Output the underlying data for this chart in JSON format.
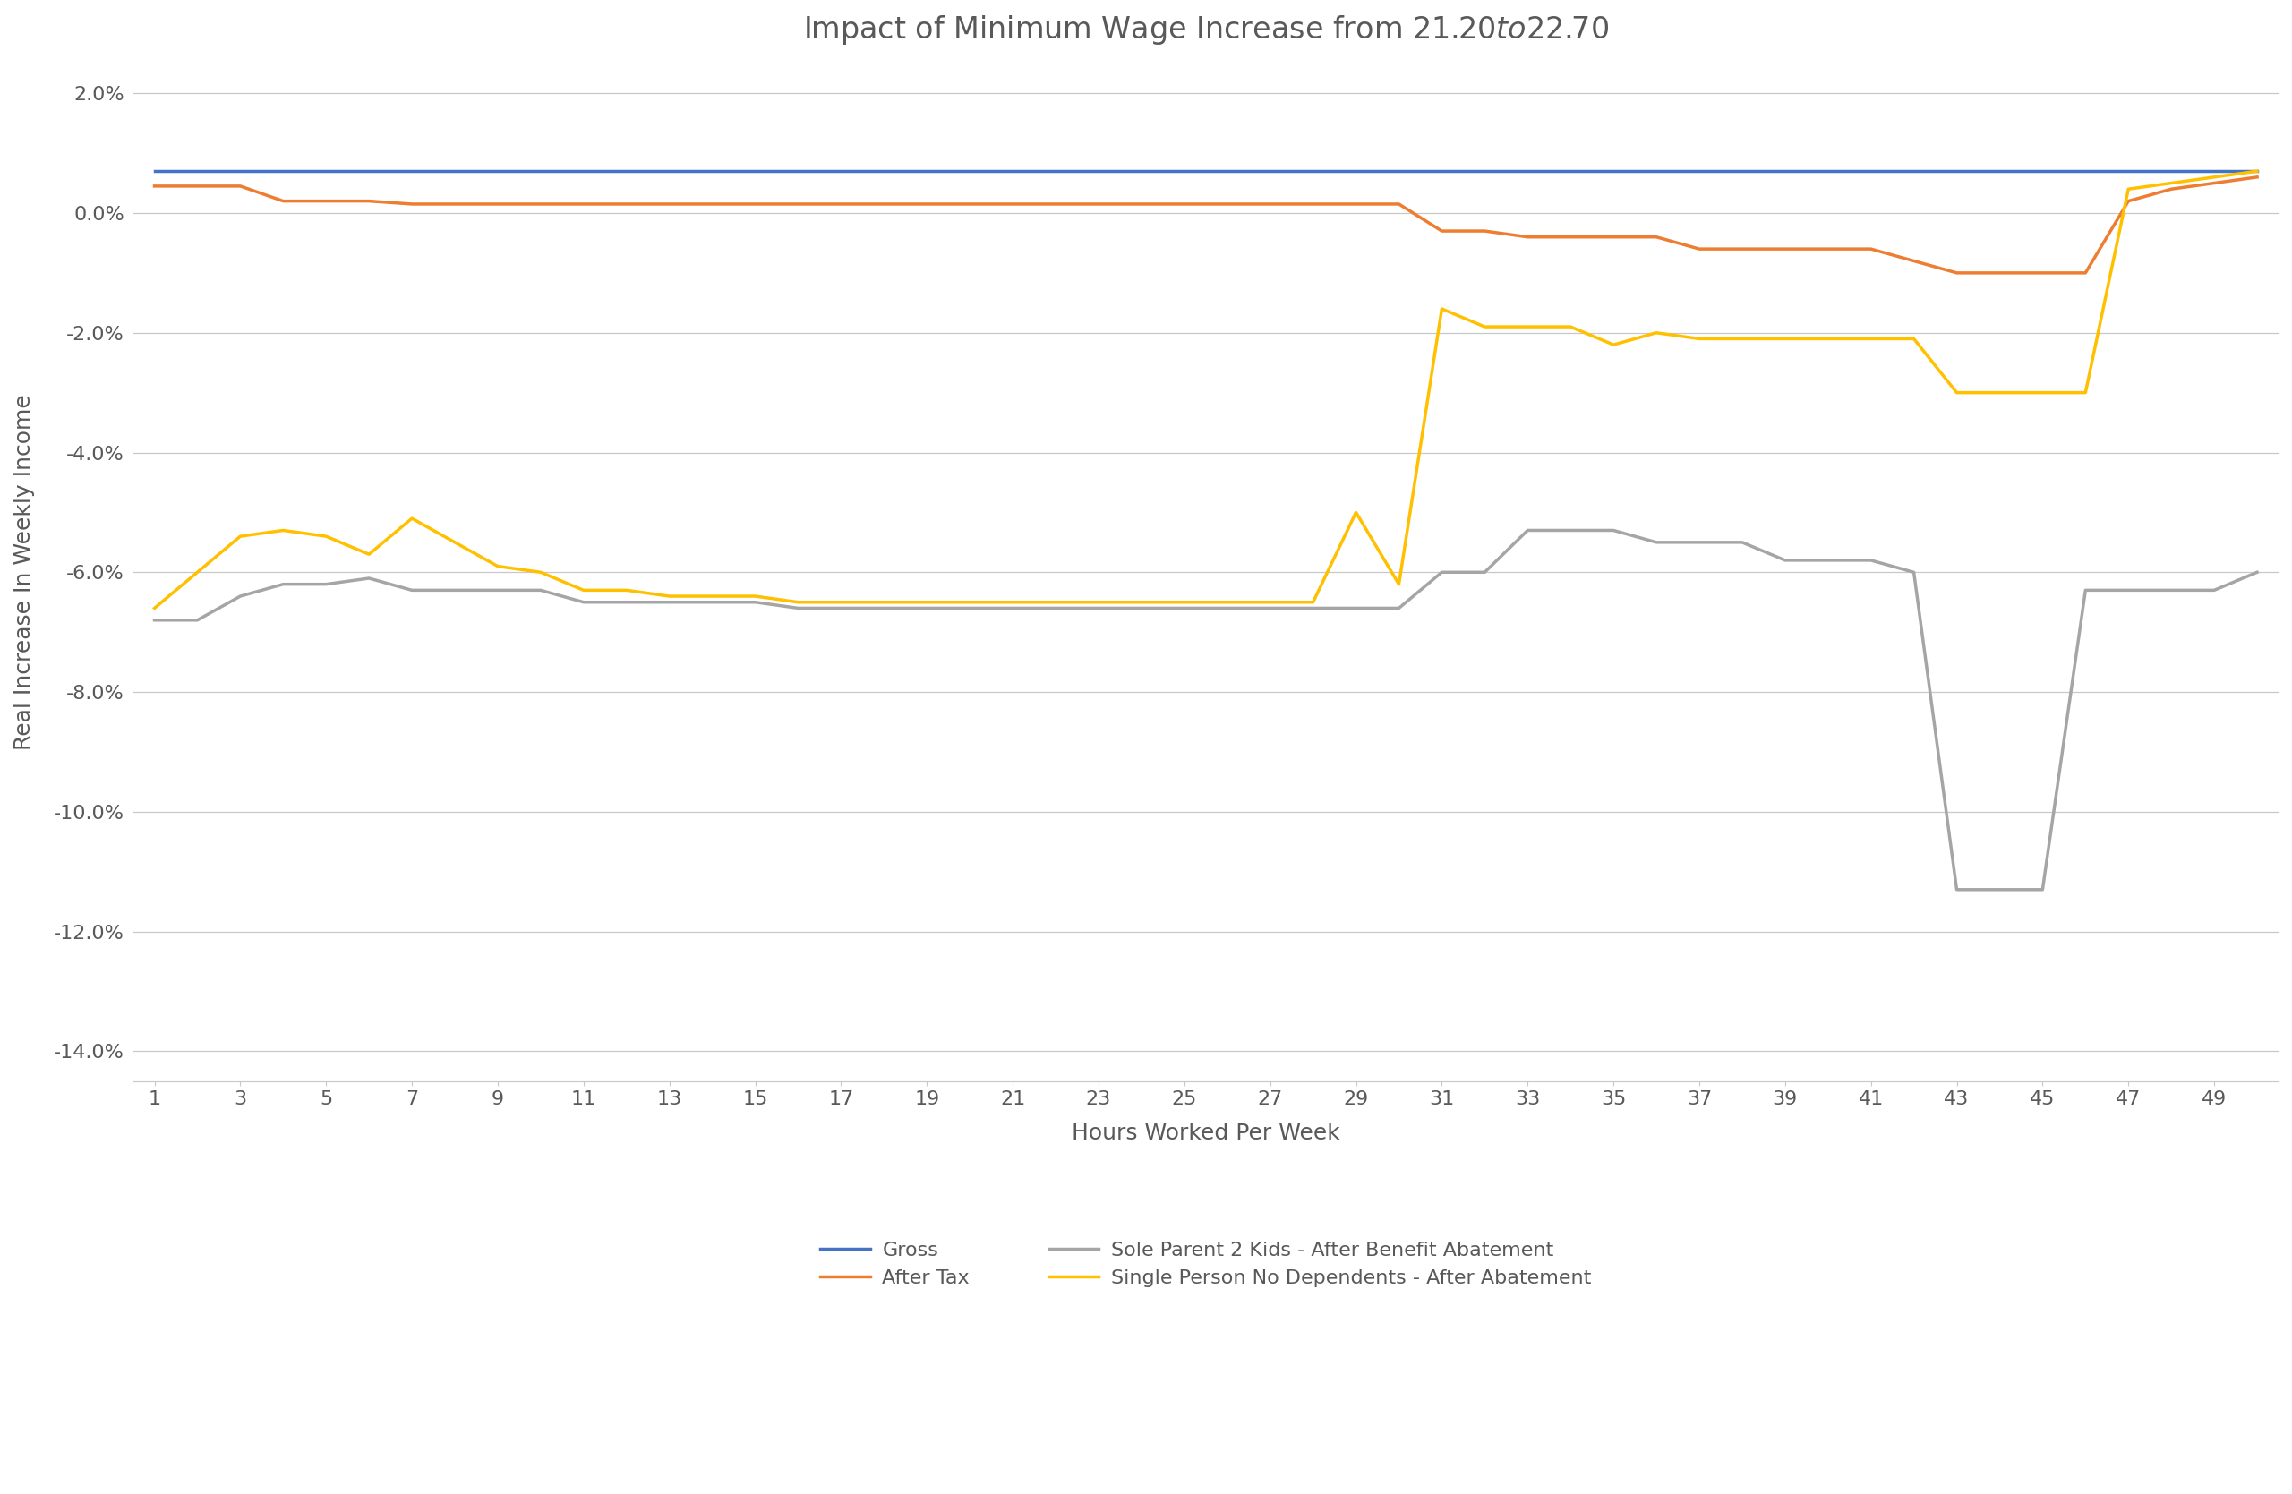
{
  "title": "Impact of Minimum Wage Increase from $21.20 to $22.70",
  "xlabel": "Hours Worked Per Week",
  "ylabel": "Real Increase In Weekly Income",
  "xlim": [
    1,
    50
  ],
  "ylim": [
    -0.145,
    0.025
  ],
  "yticks": [
    0.02,
    0.0,
    -0.02,
    -0.04,
    -0.06,
    -0.08,
    -0.1,
    -0.12,
    -0.14
  ],
  "xticks": [
    1,
    3,
    5,
    7,
    9,
    11,
    13,
    15,
    17,
    19,
    21,
    23,
    25,
    27,
    29,
    31,
    33,
    35,
    37,
    39,
    41,
    43,
    45,
    47,
    49
  ],
  "hours": [
    1,
    2,
    3,
    4,
    5,
    6,
    7,
    8,
    9,
    10,
    11,
    12,
    13,
    14,
    15,
    16,
    17,
    18,
    19,
    20,
    21,
    22,
    23,
    24,
    25,
    26,
    27,
    28,
    29,
    30,
    31,
    32,
    33,
    34,
    35,
    36,
    37,
    38,
    39,
    40,
    41,
    42,
    43,
    44,
    45,
    46,
    47,
    48,
    49,
    50
  ],
  "gross": [
    0.0071,
    0.0071,
    0.0071,
    0.0071,
    0.0071,
    0.0071,
    0.0071,
    0.0071,
    0.0071,
    0.0071,
    0.0071,
    0.0071,
    0.0071,
    0.0071,
    0.0071,
    0.0071,
    0.0071,
    0.0071,
    0.0071,
    0.0071,
    0.0071,
    0.0071,
    0.0071,
    0.0071,
    0.0071,
    0.0071,
    0.0071,
    0.0071,
    0.0071,
    0.0071,
    0.0071,
    0.0071,
    0.0071,
    0.0071,
    0.0071,
    0.0071,
    0.0071,
    0.0071,
    0.0071,
    0.0071,
    0.0071,
    0.0071,
    0.0071,
    0.0071,
    0.0071,
    0.0071,
    0.0071,
    0.0071,
    0.0071,
    0.0071
  ],
  "after_tax": [
    0.0045,
    0.0045,
    0.0045,
    0.002,
    0.002,
    0.002,
    0.0015,
    0.0015,
    0.0015,
    0.0015,
    0.0015,
    0.0015,
    0.0015,
    0.0015,
    0.0015,
    0.0015,
    0.0015,
    0.0015,
    0.0015,
    0.0015,
    0.0015,
    0.0015,
    0.0015,
    0.0015,
    0.0015,
    0.0015,
    0.0015,
    0.0015,
    0.0015,
    0.0015,
    -0.003,
    -0.003,
    -0.004,
    -0.004,
    -0.004,
    -0.004,
    -0.006,
    -0.006,
    -0.006,
    -0.006,
    -0.006,
    -0.008,
    -0.01,
    -0.01,
    -0.01,
    -0.01,
    0.002,
    0.004,
    0.005,
    0.006
  ],
  "sole_parent": [
    -0.068,
    -0.068,
    -0.064,
    -0.062,
    -0.062,
    -0.061,
    -0.063,
    -0.063,
    -0.063,
    -0.063,
    -0.065,
    -0.065,
    -0.065,
    -0.065,
    -0.065,
    -0.066,
    -0.066,
    -0.066,
    -0.066,
    -0.066,
    -0.066,
    -0.066,
    -0.066,
    -0.066,
    -0.066,
    -0.066,
    -0.066,
    -0.066,
    -0.066,
    -0.066,
    -0.06,
    -0.06,
    -0.053,
    -0.053,
    -0.053,
    -0.055,
    -0.055,
    -0.055,
    -0.058,
    -0.058,
    -0.058,
    -0.06,
    -0.113,
    -0.113,
    -0.113,
    -0.063,
    -0.063,
    -0.063,
    -0.063,
    -0.06
  ],
  "single_no_dep": [
    -0.066,
    -0.06,
    -0.054,
    -0.053,
    -0.054,
    -0.057,
    -0.051,
    -0.055,
    -0.059,
    -0.06,
    -0.063,
    -0.063,
    -0.064,
    -0.064,
    -0.064,
    -0.065,
    -0.065,
    -0.065,
    -0.065,
    -0.065,
    -0.065,
    -0.065,
    -0.065,
    -0.065,
    -0.065,
    -0.065,
    -0.065,
    -0.065,
    -0.05,
    -0.062,
    -0.016,
    -0.019,
    -0.019,
    -0.019,
    -0.022,
    -0.02,
    -0.021,
    -0.021,
    -0.021,
    -0.021,
    -0.021,
    -0.021,
    -0.03,
    -0.03,
    -0.03,
    -0.03,
    0.004,
    0.005,
    0.006,
    0.007
  ],
  "gross_color": "#4472C4",
  "after_tax_color": "#ED7D31",
  "sole_parent_color": "#A5A5A5",
  "single_no_dep_color": "#FFC000",
  "legend_labels": [
    "Gross",
    "After Tax",
    "Sole Parent 2 Kids - After Benefit Abatement",
    "Single Person No Dependents - After Abatement"
  ],
  "background_color": "#FFFFFF",
  "title_fontsize": 24,
  "axis_label_fontsize": 18,
  "tick_fontsize": 16,
  "legend_fontsize": 16,
  "line_width": 2.5
}
